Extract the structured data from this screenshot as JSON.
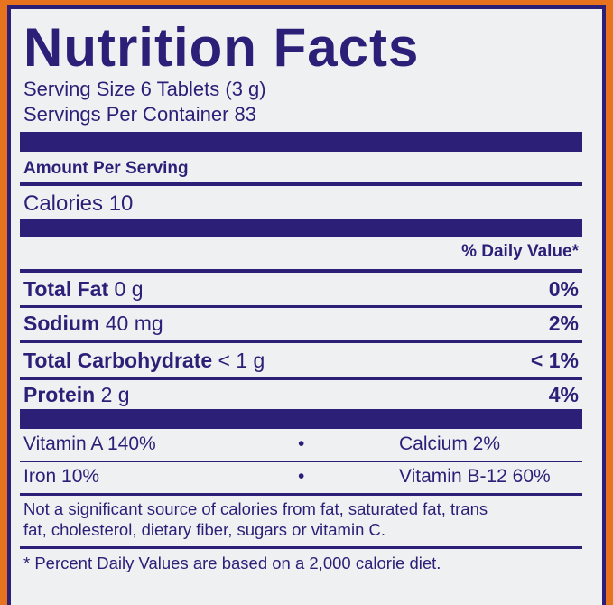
{
  "title": "Nutrition Facts",
  "serving_size": "Serving Size 6 Tablets (3 g)",
  "servings_per_container": "Servings Per Container 83",
  "amount_per_serving": "Amount Per Serving",
  "calories": "Calories 10",
  "daily_value_header": "% Daily Value*",
  "nutrients": [
    {
      "name": "Total Fat",
      "amount": "0 g",
      "dv": "0%"
    },
    {
      "name": "Sodium",
      "amount": "40 mg",
      "dv": "2%"
    },
    {
      "name": "Total Carbohydrate",
      "amount": "< 1 g",
      "dv": "< 1%"
    },
    {
      "name": "Protein",
      "amount": "2 g",
      "dv": "4%"
    }
  ],
  "vitamins": [
    {
      "left": "Vitamin A 140%",
      "sep": "•",
      "right": "Calcium 2%"
    },
    {
      "left": "Iron 10%",
      "sep": "•",
      "right": "Vitamin B-12 60%"
    }
  ],
  "note_line1": "Not a significant source of calories from fat, saturated fat, trans",
  "note_line2": "fat, cholesterol, dietary fiber, sugars or vitamin C.",
  "footnote": "* Percent Daily Values are based on a 2,000 calorie diet.",
  "colors": {
    "ink": "#2b1f78",
    "background": "#e8731e",
    "label": "#eef0f2"
  }
}
